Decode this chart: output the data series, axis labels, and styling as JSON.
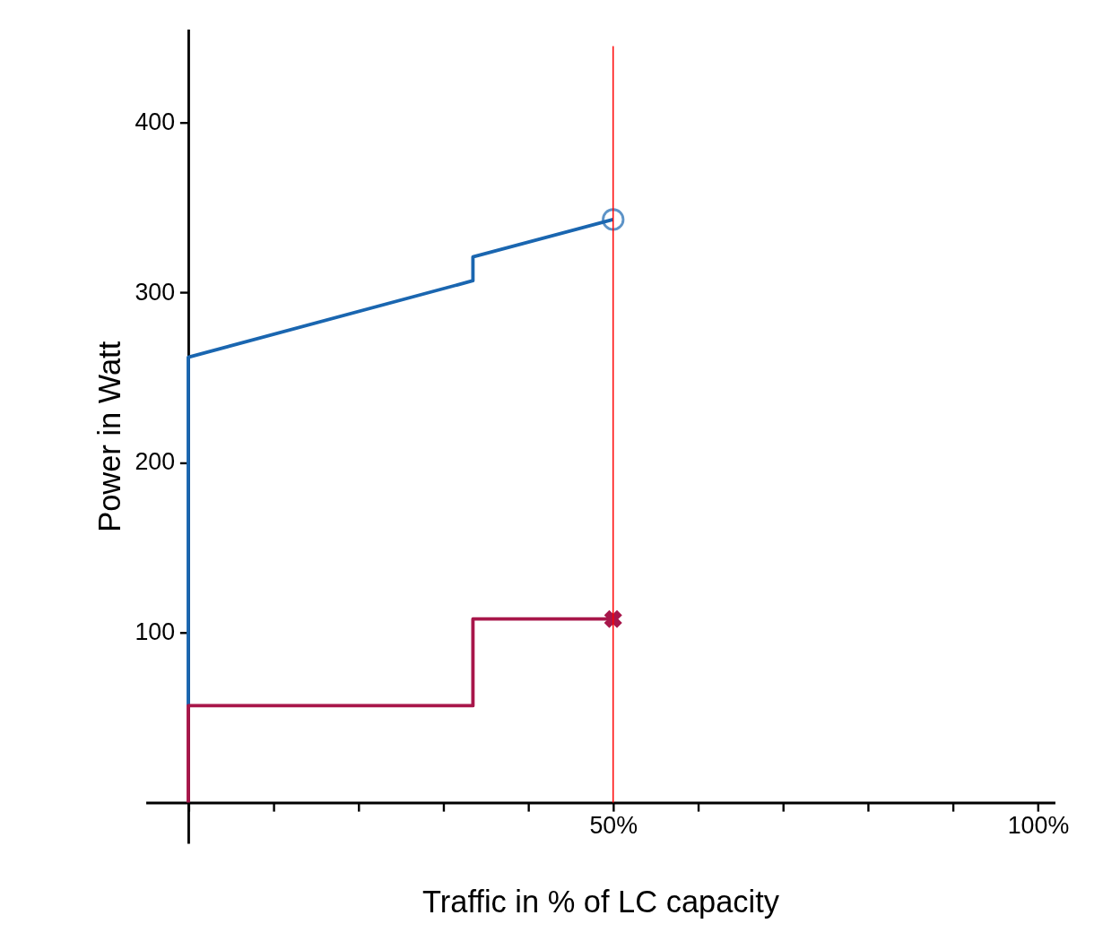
{
  "chart_data": {
    "type": "line",
    "xlabel": "Traffic in % of LC capacity",
    "ylabel": "Power in Watt",
    "xlim": [
      -5,
      102
    ],
    "ylim": [
      -24,
      455
    ],
    "xticks": [
      {
        "value": 0,
        "label": null
      },
      {
        "value": 10,
        "label": null
      },
      {
        "value": 20,
        "label": null
      },
      {
        "value": 30,
        "label": null
      },
      {
        "value": 40,
        "label": null
      },
      {
        "value": 50,
        "label": "50%"
      },
      {
        "value": 60,
        "label": null
      },
      {
        "value": 70,
        "label": null
      },
      {
        "value": 80,
        "label": null
      },
      {
        "value": 90,
        "label": null
      },
      {
        "value": 100,
        "label": "100%"
      }
    ],
    "yticks": [
      100,
      200,
      300,
      400
    ],
    "grid": false,
    "legend": false,
    "marker": "none",
    "line_style": "solid",
    "series": [
      {
        "color": "#1a66b0",
        "x": [
          0,
          0,
          33.5,
          33.5,
          50
        ],
        "values": [
          57,
          262,
          307,
          321,
          343
        ]
      },
      {
        "color": "#a8164a",
        "x": [
          0,
          0,
          33.5,
          33.5,
          50
        ],
        "values": [
          0,
          57,
          57,
          108,
          108
        ]
      },
      {
        "type": "scatter",
        "marker": "circle",
        "color": "#1a66b0",
        "x": [
          50
        ],
        "values": [
          343
        ]
      },
      {
        "type": "scatter",
        "marker": "cross",
        "color": "#a8164a",
        "x": [
          50
        ],
        "values": [
          108
        ]
      }
    ],
    "ref_lines": [
      {
        "axis": "x",
        "value": 50,
        "color": "#ff0000",
        "line_style": "solid"
      }
    ]
  }
}
